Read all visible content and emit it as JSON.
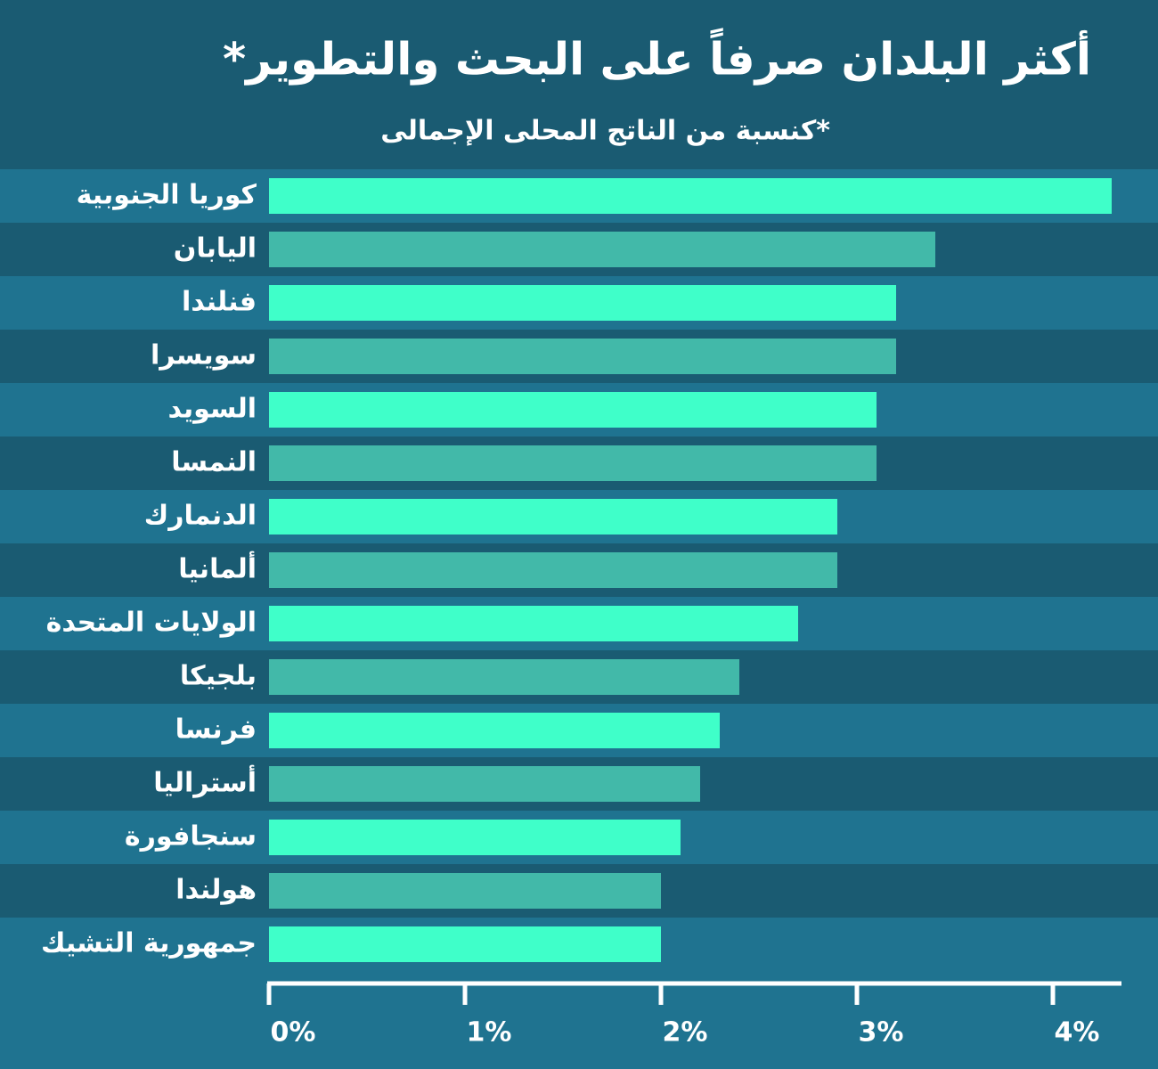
{
  "chart_data": {
    "type": "hbar",
    "title": "أكثر البلدان صرفاً على البحث والتطوير*",
    "subtitle": "*كنسبة من الناتج المحلى الإجمالى",
    "categories": [
      "كوريا الجنوبية",
      "اليابان",
      "فنلندا",
      "سويسرا",
      "السويد",
      "النمسا",
      "الدنمارك",
      "ألمانيا",
      "الولايات المتحدة",
      "بلجيكا",
      "فرنسا",
      "أستراليا",
      "سنجافورة",
      "هولندا",
      "جمهورية التشيك"
    ],
    "values": [
      4.3,
      3.4,
      3.2,
      3.2,
      3.1,
      3.1,
      2.9,
      2.9,
      2.7,
      2.4,
      2.3,
      2.2,
      2.1,
      2.0,
      2.0
    ],
    "colors": [
      "#3fffc9",
      "#42b9a9"
    ],
    "xlim": [
      0,
      4.35
    ],
    "xticks": [
      {
        "value": 0,
        "label": "0%"
      },
      {
        "value": 1,
        "label": "1%"
      },
      {
        "value": 2,
        "label": "2%"
      },
      {
        "value": 3,
        "label": "3%"
      },
      {
        "value": 4,
        "label": "4%"
      }
    ]
  }
}
